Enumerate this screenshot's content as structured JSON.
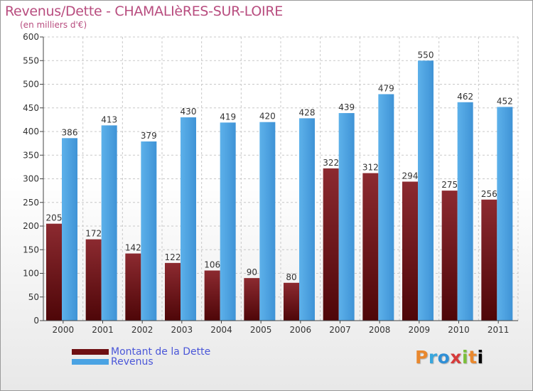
{
  "chart_data": {
    "type": "bar",
    "title": "Revenus/Dette - CHAMALIèRES-SUR-LOIRE",
    "subtitle": "(en milliers d'€)",
    "categories": [
      "2000",
      "2001",
      "2002",
      "2003",
      "2004",
      "2005",
      "2006",
      "2007",
      "2008",
      "2009",
      "2010",
      "2011"
    ],
    "series": [
      {
        "name": "Montant de la Dette",
        "values": [
          205,
          172,
          142,
          122,
          106,
          90,
          80,
          322,
          312,
          294,
          275,
          256
        ],
        "color": "#7a1a1e"
      },
      {
        "name": "Revenus",
        "values": [
          386,
          413,
          379,
          430,
          419,
          420,
          428,
          439,
          479,
          550,
          462,
          452
        ],
        "color": "#4aa3e3"
      }
    ],
    "yticks": [
      0,
      50,
      100,
      150,
      200,
      250,
      300,
      350,
      400,
      450,
      500,
      550,
      600
    ],
    "ylim": [
      0,
      600
    ],
    "grid": true,
    "legend": "bottom-left"
  },
  "logo": {
    "letters": [
      "P",
      "r",
      "o",
      "x",
      "i",
      "t",
      "i"
    ]
  }
}
